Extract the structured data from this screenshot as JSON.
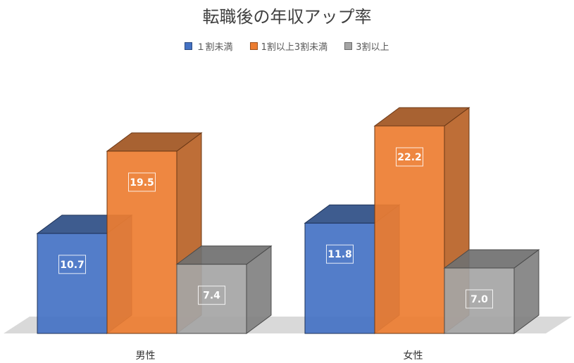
{
  "chart_data": {
    "type": "bar",
    "title": "転職後の年収アップ率",
    "categories": [
      "男性",
      "女性"
    ],
    "series": [
      {
        "name": "１割未満",
        "values": [
          10.7,
          11.8
        ],
        "color": "#4472c4"
      },
      {
        "name": "1割以上3割未満",
        "values": [
          19.5,
          22.2
        ],
        "color": "#ed7d31"
      },
      {
        "name": "3割以上",
        "values": [
          7.4,
          7.0
        ],
        "color": "#a5a5a5"
      }
    ],
    "ylim": [
      0,
      25
    ],
    "legend": "top",
    "grid": false,
    "style": "3d-clustered-column"
  }
}
